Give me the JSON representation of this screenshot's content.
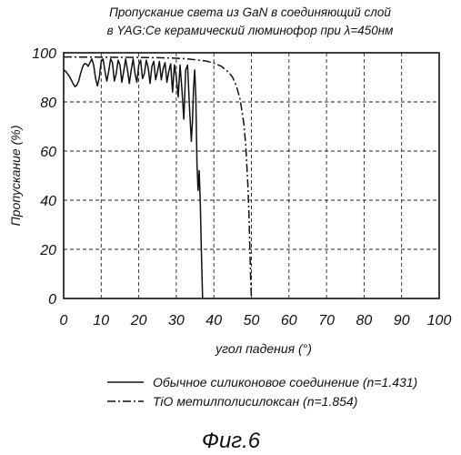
{
  "figure_caption": "Фиг.6",
  "chart_data": {
    "type": "line",
    "title_lines": [
      "Пропускание света из GaN в соединяющий слой",
      "в YAG:Ce керамический люминофор при  λ=450нм"
    ],
    "xlabel": "угол падения (°)",
    "ylabel": "Пропускание  (%)",
    "xlim": [
      0,
      100
    ],
    "ylim": [
      0,
      100
    ],
    "x_ticks": [
      0,
      10,
      20,
      30,
      40,
      50,
      60,
      70,
      80,
      90,
      100
    ],
    "y_ticks": [
      0,
      20,
      40,
      60,
      80,
      100
    ],
    "grid": "dashed",
    "legend_position": "below",
    "series": [
      {
        "name": "Обычное силиконовое соединение (n=1.431)",
        "style": "solid",
        "color": "#111111",
        "x": [
          0.0,
          0.5,
          1.0,
          1.5,
          2.0,
          2.5,
          3.0,
          3.5,
          4.0,
          4.5,
          5.0,
          5.5,
          6.0,
          6.5,
          7.0,
          7.5,
          8.0,
          8.5,
          9.0,
          9.5,
          10.0,
          10.5,
          11.0,
          11.5,
          12.0,
          12.5,
          13.0,
          13.5,
          14.0,
          14.5,
          15.0,
          15.5,
          16.0,
          16.5,
          17.0,
          17.5,
          18.0,
          18.5,
          19.0,
          19.5,
          20.0,
          20.5,
          21.0,
          21.5,
          22.0,
          22.5,
          23.0,
          23.5,
          24.0,
          24.5,
          25.0,
          25.5,
          26.0,
          26.5,
          27.0,
          27.5,
          28.0,
          28.5,
          29.0,
          29.5,
          30.0,
          30.5,
          31.0,
          31.5,
          32.0,
          32.5,
          33.0,
          33.5,
          34.0,
          34.3,
          34.6,
          34.9,
          35.2,
          35.5,
          35.8,
          36.1,
          36.4,
          36.7,
          37.0
        ],
        "y": [
          93,
          92.5,
          91.5,
          90.5,
          89,
          87.5,
          86.2,
          86.8,
          88.5,
          91.5,
          94,
          95.5,
          95.5,
          94.5,
          96,
          97.5,
          95,
          89.5,
          86.5,
          90,
          96.5,
          97.5,
          92.5,
          88.5,
          92.5,
          97.5,
          96,
          88.5,
          91.5,
          97,
          95,
          88,
          92.5,
          97.5,
          93,
          87.5,
          93,
          97.5,
          91.5,
          88,
          95,
          97,
          89.5,
          91.5,
          97,
          94,
          87.5,
          94.5,
          96.5,
          89,
          92.5,
          96.5,
          89,
          93.5,
          96,
          88,
          92.5,
          95.5,
          84,
          95,
          90,
          82,
          95,
          85,
          73,
          93,
          95,
          78,
          64,
          72,
          86,
          93,
          82,
          55,
          44,
          52,
          38,
          18,
          0
        ]
      },
      {
        "name": "TiO метилполисилоксан   (n=1.854)",
        "style": "dash-dot",
        "color": "#111111",
        "x": [
          0,
          10,
          20,
          25,
          30,
          33,
          36,
          38,
          40,
          42,
          44,
          45,
          46,
          47,
          48,
          48.5,
          49,
          49.3,
          49.6,
          49.8,
          50.0
        ],
        "y": [
          98.3,
          98.2,
          98.1,
          98.0,
          97.8,
          97.5,
          97.0,
          96.6,
          95.8,
          94.5,
          92.0,
          90.0,
          86.5,
          81.0,
          71.0,
          62.0,
          48.0,
          36.0,
          20.0,
          8.0,
          0.0
        ]
      }
    ]
  }
}
